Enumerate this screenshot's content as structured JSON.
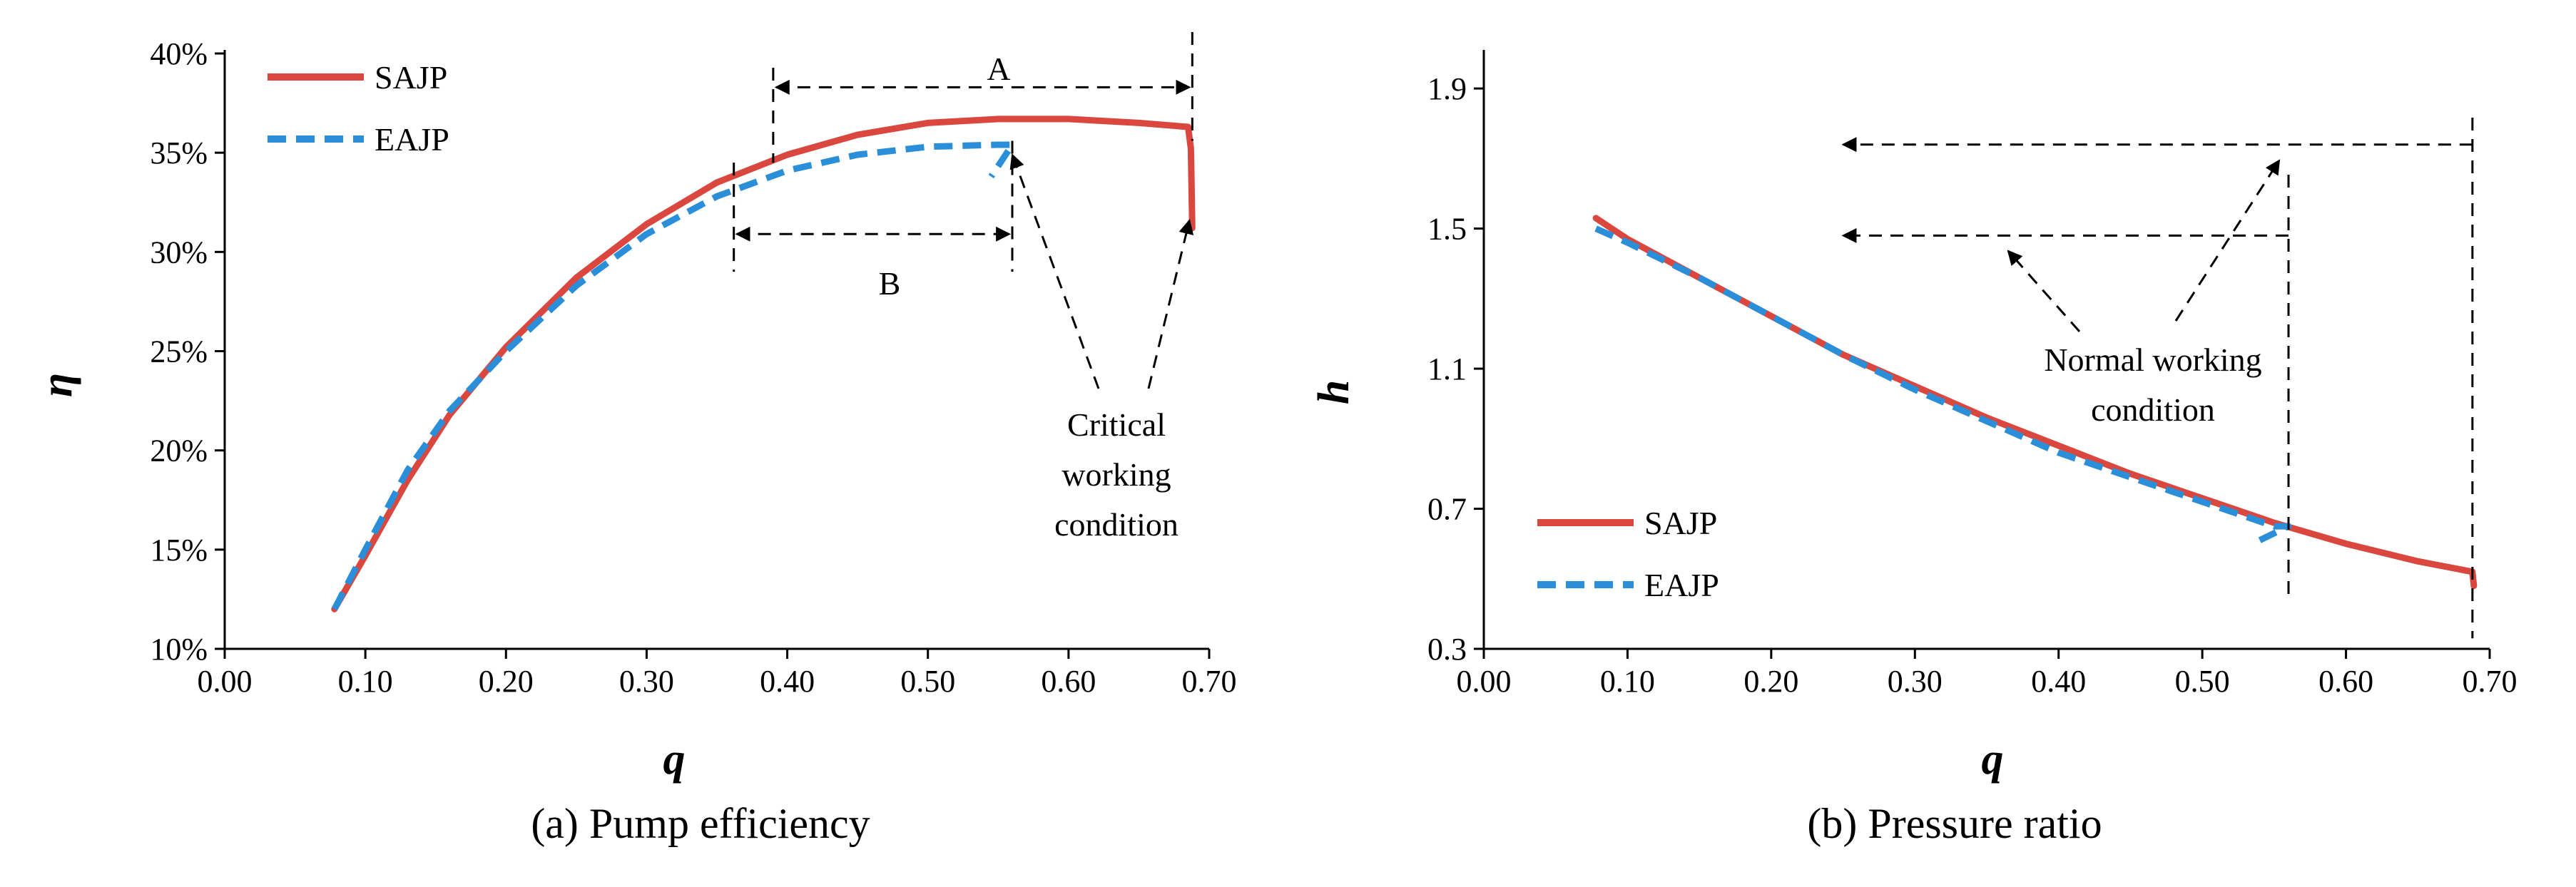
{
  "chart_data": [
    {
      "type": "line",
      "title": "",
      "caption": "(a) Pump efficiency",
      "xlabel": "q",
      "ylabel": "η",
      "xlim": [
        0.0,
        0.7
      ],
      "ylim": [
        0.1,
        0.4
      ],
      "xticks": [
        0.0,
        0.1,
        0.2,
        0.3,
        0.4,
        0.5,
        0.6,
        0.7
      ],
      "xtick_labels": [
        "0.00",
        "0.10",
        "0.20",
        "0.30",
        "0.40",
        "0.50",
        "0.60",
        "0.70"
      ],
      "yticks": [
        0.1,
        0.15,
        0.2,
        0.25,
        0.3,
        0.35,
        0.4
      ],
      "ytick_labels": [
        "10%",
        "15%",
        "20%",
        "25%",
        "30%",
        "35%",
        "40%"
      ],
      "legend_position": "top-left",
      "series": [
        {
          "name": "SAJP",
          "color": "#d9473f",
          "style": "solid",
          "x": [
            0.078,
            0.1,
            0.13,
            0.16,
            0.2,
            0.25,
            0.3,
            0.35,
            0.4,
            0.45,
            0.5,
            0.55,
            0.6,
            0.65,
            0.685,
            0.687,
            0.688
          ],
          "y": [
            0.12,
            0.147,
            0.185,
            0.218,
            0.252,
            0.287,
            0.314,
            0.335,
            0.349,
            0.359,
            0.365,
            0.367,
            0.367,
            0.365,
            0.363,
            0.352,
            0.312
          ]
        },
        {
          "name": "EAJP",
          "color": "#2a8fd8",
          "style": "dashed",
          "x": [
            0.078,
            0.1,
            0.13,
            0.16,
            0.2,
            0.25,
            0.3,
            0.35,
            0.4,
            0.45,
            0.5,
            0.55,
            0.56,
            0.545
          ],
          "y": [
            0.12,
            0.15,
            0.19,
            0.22,
            0.25,
            0.283,
            0.309,
            0.328,
            0.341,
            0.349,
            0.353,
            0.354,
            0.354,
            0.338
          ]
        }
      ],
      "annotations": [
        {
          "label": "A",
          "x_from": 0.39,
          "x_to": 0.688,
          "y": 0.383
        },
        {
          "label": "B",
          "x_from": 0.362,
          "x_to": 0.56,
          "y": 0.309
        },
        {
          "label": "Critical working condition",
          "lines": [
            "Critical",
            "working",
            "condition"
          ],
          "x": 0.6,
          "y": 0.22,
          "targets": [
            {
              "x": 0.56,
              "y": 0.354
            },
            {
              "x": 0.688,
              "y": 0.313
            }
          ]
        }
      ]
    },
    {
      "type": "line",
      "title": "",
      "caption": "(b) Pressure ratio",
      "xlabel": "q",
      "ylabel": "h",
      "xlim": [
        0.0,
        0.7
      ],
      "ylim": [
        0.3,
        2.0
      ],
      "xticks": [
        0.0,
        0.1,
        0.2,
        0.3,
        0.4,
        0.5,
        0.6,
        0.7
      ],
      "xtick_labels": [
        "0.00",
        "0.10",
        "0.20",
        "0.30",
        "0.40",
        "0.50",
        "0.60",
        "0.70"
      ],
      "yticks": [
        0.3,
        0.7,
        1.1,
        1.5,
        1.9
      ],
      "ytick_labels": [
        "0.3",
        "0.7",
        "1.1",
        "1.5",
        "1.9"
      ],
      "legend_position": "bottom-left",
      "series": [
        {
          "name": "SAJP",
          "color": "#d9473f",
          "style": "solid",
          "x": [
            0.078,
            0.1,
            0.15,
            0.2,
            0.25,
            0.3,
            0.35,
            0.4,
            0.45,
            0.5,
            0.55,
            0.6,
            0.65,
            0.688,
            0.689
          ],
          "y": [
            1.53,
            1.47,
            1.36,
            1.25,
            1.14,
            1.05,
            0.96,
            0.88,
            0.8,
            0.73,
            0.66,
            0.6,
            0.55,
            0.52,
            0.48
          ]
        },
        {
          "name": "EAJP",
          "color": "#2a8fd8",
          "style": "dashed",
          "x": [
            0.078,
            0.1,
            0.15,
            0.2,
            0.25,
            0.3,
            0.35,
            0.4,
            0.45,
            0.5,
            0.55,
            0.56,
            0.54
          ],
          "y": [
            1.5,
            1.46,
            1.36,
            1.25,
            1.14,
            1.04,
            0.95,
            0.86,
            0.79,
            0.72,
            0.65,
            0.65,
            0.61
          ]
        }
      ],
      "annotations": [
        {
          "label": "Normal working condition",
          "lines": [
            "Normal working",
            "condition"
          ],
          "x": 0.45,
          "y": 1.12
        }
      ]
    }
  ]
}
